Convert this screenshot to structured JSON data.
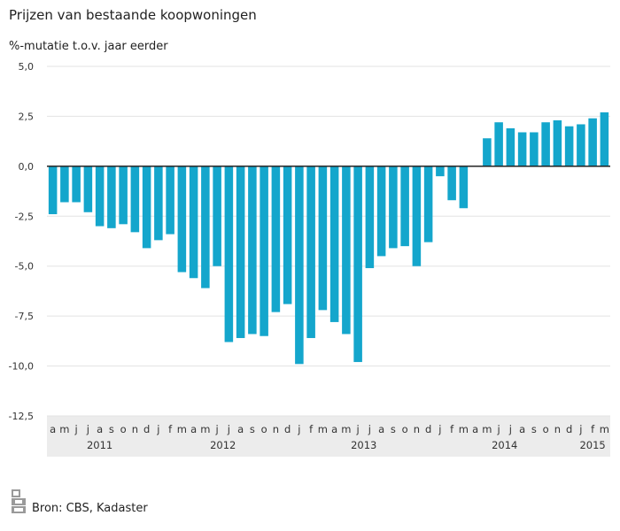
{
  "colors": {
    "bar": "#14a6cc",
    "axis_band": "#ececec",
    "grid": "#e3e3e3",
    "zero_line": "#222222"
  },
  "source": {
    "text": "Bron: CBS, Kadaster",
    "logo_icon": "cbs-logo-icon"
  },
  "chart_data": {
    "type": "bar",
    "title": "Prijzen van bestaande koopwoningen",
    "ylabel": "%-mutatie t.o.v. jaar eerder",
    "ylim": [
      -12.5,
      5.0
    ],
    "yticks": [
      "5,0",
      "2,5",
      "0,0",
      "-2,5",
      "-5,0",
      "-7,5",
      "-10,0",
      "-12,5"
    ],
    "yticks_values": [
      5.0,
      2.5,
      0.0,
      -2.5,
      -5.0,
      -7.5,
      -10.0,
      -12.5
    ],
    "grid": true,
    "categories": [
      "a",
      "m",
      "j",
      "j",
      "a",
      "s",
      "o",
      "n",
      "d",
      "j",
      "f",
      "m",
      "a",
      "m",
      "j",
      "j",
      "a",
      "s",
      "o",
      "n",
      "d",
      "j",
      "f",
      "m",
      "a",
      "m",
      "j",
      "j",
      "a",
      "s",
      "o",
      "n",
      "d",
      "j",
      "f",
      "m",
      "a",
      "m",
      "j",
      "j",
      "a",
      "s",
      "o",
      "n",
      "d",
      "j",
      "f",
      "m"
    ],
    "years": [
      {
        "label": "2011",
        "start": 0,
        "end": 8
      },
      {
        "label": "2012",
        "start": 9,
        "end": 20
      },
      {
        "label": "2013",
        "start": 21,
        "end": 32
      },
      {
        "label": "2014",
        "start": 33,
        "end": 44
      },
      {
        "label": "2015",
        "start": 45,
        "end": 47
      }
    ],
    "values": [
      -2.4,
      -1.8,
      -1.8,
      -2.3,
      -3.0,
      -3.1,
      -2.9,
      -3.3,
      -4.1,
      -3.7,
      -3.4,
      -5.3,
      -5.6,
      -6.1,
      -5.0,
      -8.8,
      -8.6,
      -8.4,
      -8.5,
      -7.3,
      -6.9,
      -9.9,
      -8.6,
      -7.2,
      -7.8,
      -8.4,
      -9.8,
      -5.1,
      -4.5,
      -4.1,
      -4.0,
      -5.0,
      -3.8,
      -0.5,
      -1.7,
      -2.1,
      0.0,
      1.4,
      2.2,
      1.9,
      1.7,
      1.7,
      2.2,
      2.3,
      2.0,
      2.1,
      2.4,
      2.7
    ]
  }
}
